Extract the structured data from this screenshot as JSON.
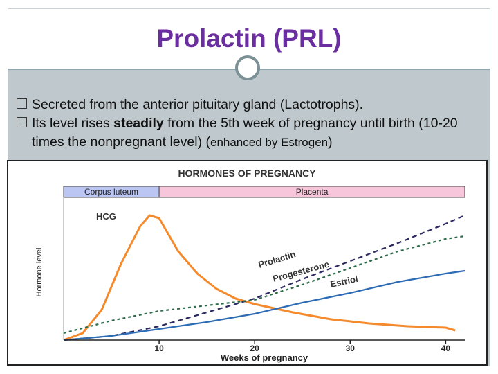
{
  "slide": {
    "title": "Prolactin (PRL)",
    "bullets": [
      {
        "text": "Secreted from the anterior pituitary gland (Lactotrophs)."
      },
      {
        "pre": "Its level rises ",
        "bold": "steadily",
        "post": " from the 5th week of pregnancy until birth (10-20 times the nonpregnant level) (",
        "small": "enhanced by Estrogen",
        "end": ")"
      }
    ]
  },
  "chart_data": {
    "type": "line",
    "title": "HORMONES OF PREGNANCY",
    "xlabel": "Weeks of pregnancy",
    "ylabel": "Hormone level",
    "xlim": [
      0,
      42
    ],
    "ylim": [
      0,
      100
    ],
    "x_ticks": [
      10,
      20,
      30,
      40
    ],
    "phases": [
      {
        "label": "Corpus luteum",
        "from": 0,
        "to": 10,
        "color": "#bcc6f2"
      },
      {
        "label": "Placenta",
        "from": 10,
        "to": 42,
        "color": "#f7c6da"
      }
    ],
    "series": [
      {
        "name": "HCG",
        "color": "#f58a2c",
        "dash": "",
        "x": [
          0,
          2,
          4,
          6,
          8,
          9,
          10,
          11,
          12,
          14,
          16,
          18,
          20,
          24,
          28,
          32,
          36,
          40,
          41
        ],
        "y": [
          0,
          5,
          22,
          55,
          82,
          90,
          88,
          76,
          64,
          48,
          37,
          30,
          26,
          20,
          15,
          12,
          10,
          9,
          7
        ]
      },
      {
        "name": "Prolactin",
        "color": "#2c2a60",
        "dash": "7 5",
        "x": [
          0,
          5,
          10,
          15,
          20,
          25,
          30,
          35,
          40,
          42
        ],
        "y": [
          0,
          3,
          10,
          20,
          30,
          44,
          57,
          70,
          84,
          90
        ]
      },
      {
        "name": "Progesterone",
        "color": "#2f6b4a",
        "dash": "4 4",
        "x": [
          0,
          5,
          10,
          15,
          20,
          25,
          30,
          35,
          40,
          42
        ],
        "y": [
          5,
          14,
          21,
          25,
          29,
          40,
          52,
          64,
          73,
          75
        ]
      },
      {
        "name": "Estriol",
        "color": "#2d6cb5",
        "dash": "",
        "x": [
          0,
          5,
          10,
          15,
          20,
          25,
          30,
          35,
          40,
          42
        ],
        "y": [
          0,
          3,
          8,
          13,
          19,
          27,
          34,
          42,
          48,
          50
        ]
      }
    ]
  }
}
